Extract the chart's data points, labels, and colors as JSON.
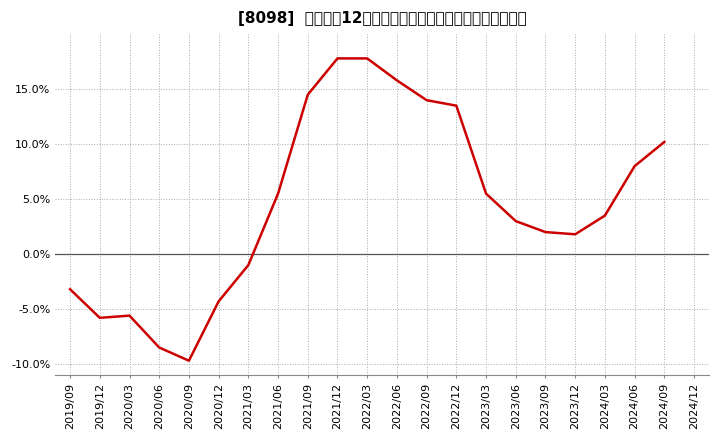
{
  "title": "[8098]  売上高の12か月移動合計の対前年同期増減率の推移",
  "x_labels": [
    "2019/09",
    "2019/12",
    "2020/03",
    "2020/06",
    "2020/09",
    "2020/12",
    "2021/03",
    "2021/06",
    "2021/09",
    "2021/12",
    "2022/03",
    "2022/06",
    "2022/09",
    "2022/12",
    "2023/03",
    "2023/06",
    "2023/09",
    "2023/12",
    "2024/03",
    "2024/06",
    "2024/09",
    "2024/12"
  ],
  "values": [
    -3.2,
    -5.8,
    -5.6,
    -8.5,
    -9.7,
    -4.3,
    -1.0,
    5.5,
    14.5,
    17.8,
    17.8,
    15.8,
    14.0,
    13.5,
    5.5,
    3.0,
    2.0,
    1.8,
    3.5,
    8.0,
    10.2,
    null
  ],
  "line_color": "#cc0000",
  "background_color": "#ffffff",
  "plot_bg_color": "#ffffff",
  "grid_color": "#aaaaaa",
  "zero_line_color": "#555555",
  "ylim": [
    -11,
    20
  ],
  "yticks": [
    -10.0,
    -5.0,
    0.0,
    5.0,
    10.0,
    15.0
  ],
  "title_fontsize": 11,
  "tick_fontsize": 8,
  "line_width": 1.8
}
